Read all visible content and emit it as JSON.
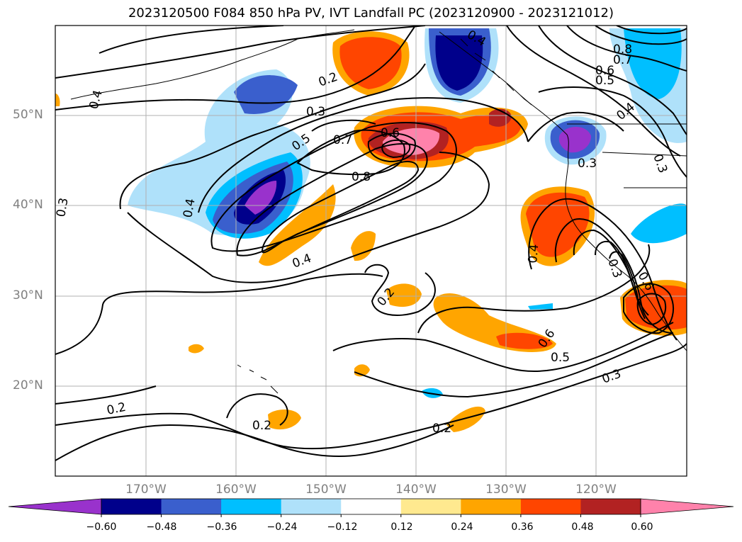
{
  "title": "2023120500 F084 850 hPa PV, IVT Landfall PC (2023120900 - 2023121012)",
  "map": {
    "lat_labels": [
      "50°N",
      "40°N",
      "30°N",
      "20°N"
    ],
    "lon_labels": [
      "170°W",
      "160°W",
      "150°W",
      "140°W",
      "130°W",
      "120°W"
    ],
    "contour_labels": [
      "0.4",
      "0.8",
      "0.7",
      "0.6",
      "0.5",
      "0.4",
      "0.2",
      "0.3",
      "0.5",
      "0.7",
      "0.6",
      "0.8",
      "0.3",
      "0.4",
      "0.3",
      "0.4",
      "0.4",
      "0.2",
      "0.6",
      "0.5",
      "0.3",
      "0.2",
      "0.2",
      "0.2",
      "0.3",
      "0.4",
      "0.6",
      "0.3"
    ],
    "colors": {
      "land_outline": "#000000",
      "grid": "#b0b0b0"
    }
  },
  "colorbar": {
    "ticks": [
      "−0.60",
      "−0.48",
      "−0.36",
      "−0.24",
      "−0.12",
      "0.12",
      "0.24",
      "0.36",
      "0.48",
      "0.60"
    ],
    "colors": [
      "#9932cc",
      "#00008b",
      "#3a5fcd",
      "#00bfff",
      "#afe1fa",
      "#ffffff",
      "#ffe98f",
      "#ffa500",
      "#ff4500",
      "#b22222",
      "#ff82ab"
    ]
  }
}
